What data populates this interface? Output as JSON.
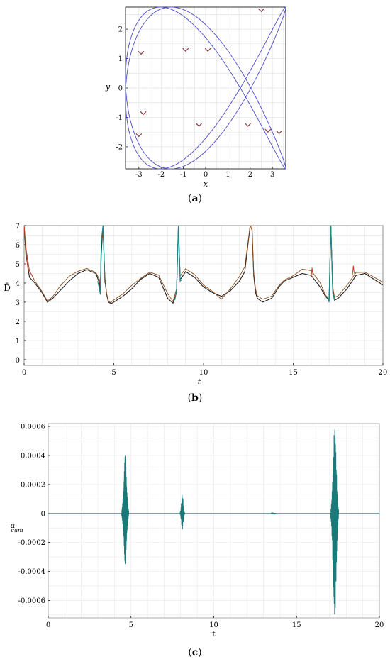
{
  "panels": [
    {
      "caption": "(a)",
      "caption_letter": "a"
    },
    {
      "caption": "(b)",
      "caption_letter": "b"
    },
    {
      "caption": "(c)",
      "caption_letter": "c"
    }
  ],
  "chart_data": [
    {
      "type": "line",
      "panel": "a",
      "xlabel": "x",
      "ylabel": "y",
      "xlim": [
        -3.6,
        3.6
      ],
      "ylim": [
        -2.75,
        2.75
      ],
      "xticks": [
        -3,
        -2,
        -1,
        0,
        1,
        2,
        3
      ],
      "yticks": [
        -2,
        -1,
        0,
        1,
        2
      ],
      "grid": true,
      "curve": {
        "kind": "parametric",
        "x_amplitude": 3.6,
        "x_frequency": 2,
        "y_amplitude": 2.75,
        "y_frequency": 3,
        "phase": 0.6,
        "color": "#4a4ac8"
      },
      "direction_arrows": [
        {
          "x": -2.9,
          "y": 1.15
        },
        {
          "x": -0.9,
          "y": 1.25
        },
        {
          "x": 0.1,
          "y": 1.25
        },
        {
          "x": 2.5,
          "y": 2.6
        },
        {
          "x": -2.8,
          "y": -0.9
        },
        {
          "x": -3.0,
          "y": -1.65
        },
        {
          "x": -0.3,
          "y": -1.3
        },
        {
          "x": 1.9,
          "y": -1.3
        },
        {
          "x": 2.8,
          "y": -1.5
        },
        {
          "x": 3.3,
          "y": -1.55
        }
      ],
      "arrow_color": "#8b3a3a"
    },
    {
      "type": "line",
      "panel": "b",
      "xlabel": "t",
      "ylabel": "D̄",
      "xlim": [
        0,
        20
      ],
      "ylim": [
        -0.3,
        7
      ],
      "xticks": [
        0,
        5,
        10,
        15,
        20
      ],
      "yticks": [
        0,
        1,
        2,
        3,
        4,
        5,
        6,
        7
      ],
      "grid": true,
      "series": [
        {
          "color": "#1f1f1f",
          "x": [
            0,
            0.1,
            0.3,
            0.6,
            1.0,
            1.3,
            1.6,
            2.0,
            2.5,
            3.0,
            3.5,
            4.0,
            4.2,
            4.25,
            4.3,
            4.4,
            4.5,
            4.6,
            4.7,
            4.8,
            4.9,
            5.5,
            6.0,
            6.5,
            7.0,
            7.5,
            8.0,
            8.3,
            8.5,
            8.6,
            8.7,
            8.8,
            9.0,
            9.5,
            10.0,
            10.5,
            11.0,
            11.5,
            12.0,
            12.3,
            12.6,
            12.7,
            12.8,
            12.9,
            13.0,
            13.3,
            13.8,
            14.2,
            14.5,
            15.0,
            15.5,
            16.0,
            16.5,
            16.8,
            17.0,
            17.1,
            17.2,
            17.3,
            17.5,
            18.0,
            18.5,
            19.0,
            19.5,
            20.0
          ],
          "y": [
            7,
            5.5,
            4.3,
            4.0,
            3.5,
            3.0,
            3.2,
            3.6,
            4.1,
            4.5,
            4.7,
            4.5,
            4.0,
            3.6,
            5.5,
            7,
            4.2,
            3.4,
            3.0,
            2.95,
            2.95,
            3.3,
            3.7,
            4.2,
            4.5,
            4.3,
            3.2,
            2.95,
            3.5,
            7,
            4.2,
            4.3,
            4.6,
            4.3,
            3.8,
            3.5,
            3.3,
            3.6,
            4.1,
            4.6,
            7,
            7,
            4.4,
            3.5,
            3.2,
            3.0,
            3.2,
            3.8,
            4.1,
            4.3,
            4.5,
            4.4,
            3.8,
            3.3,
            3.1,
            7,
            3.6,
            3.1,
            3.2,
            3.7,
            4.4,
            4.5,
            4.2,
            3.9
          ]
        },
        {
          "color": "#8b4a1a",
          "x": [
            0,
            0.1,
            0.3,
            0.6,
            1.0,
            1.3,
            1.6,
            2.0,
            2.5,
            3.0,
            3.5,
            4.0,
            4.2,
            4.25,
            4.3,
            4.4,
            4.5,
            4.6,
            4.7,
            4.8,
            4.9,
            5.5,
            6.0,
            6.5,
            7.0,
            7.5,
            8.0,
            8.3,
            8.5,
            8.6,
            8.7,
            8.8,
            9.0,
            9.5,
            10.0,
            10.5,
            11.0,
            11.5,
            12.0,
            12.3,
            12.6,
            12.7,
            12.8,
            12.9,
            13.0,
            13.3,
            13.8,
            14.2,
            14.5,
            15.0,
            15.5,
            16.0,
            16.5,
            16.8,
            17.0,
            17.1,
            17.2,
            17.3,
            17.5,
            18.0,
            18.5,
            19.0,
            19.5,
            20.0
          ],
          "y": [
            7,
            5.8,
            4.6,
            4.1,
            3.6,
            3.1,
            3.3,
            3.8,
            4.3,
            4.6,
            4.8,
            4.6,
            4.2,
            3.8,
            6.0,
            6.6,
            4.4,
            3.5,
            3.1,
            2.95,
            3.0,
            3.4,
            3.9,
            4.3,
            4.6,
            4.4,
            3.4,
            3.0,
            3.7,
            7,
            4.4,
            4.5,
            4.7,
            4.4,
            3.9,
            3.6,
            3.2,
            3.7,
            4.3,
            4.8,
            7,
            6.8,
            4.6,
            3.7,
            3.3,
            3.1,
            3.3,
            3.9,
            4.2,
            4.4,
            4.7,
            4.6,
            4.0,
            3.4,
            3.2,
            7,
            3.8,
            3.2,
            3.3,
            3.9,
            4.6,
            4.6,
            4.3,
            4.0
          ]
        },
        {
          "color": "#1a8a8a",
          "x": [
            4.1,
            4.2,
            4.25,
            4.3,
            4.4,
            4.5,
            8.4,
            8.5,
            8.6,
            8.7,
            8.8,
            16.9,
            17.0,
            17.1,
            17.2,
            17.3
          ],
          "y": [
            4.1,
            3.7,
            3.4,
            6.2,
            7,
            4.0,
            3.1,
            3.6,
            7,
            4.1,
            4.2,
            3.3,
            3.0,
            7,
            3.5,
            3.1
          ]
        },
        {
          "color": "#d04030",
          "x": [
            0,
            0.2,
            0.5,
            16.0,
            16.05,
            16.1,
            18.3,
            18.35,
            18.4
          ],
          "y": [
            7,
            4.8,
            4.3,
            4.3,
            4.8,
            4.4,
            4.4,
            4.9,
            4.5
          ]
        }
      ]
    },
    {
      "type": "line",
      "panel": "c",
      "xlabel": "t",
      "ylabel": "a",
      "ylabel_sub": "cum",
      "xlim": [
        0,
        20
      ],
      "ylim": [
        -0.00072,
        0.00062
      ],
      "xticks": [
        0,
        5,
        10,
        15,
        20
      ],
      "yticks": [
        -0.0006,
        -0.0004,
        -0.0002,
        0,
        0.0002,
        0.0004,
        0.0006
      ],
      "ytick_labels": [
        "-0.0006",
        "-0.0004",
        "-0.0002",
        "0",
        "0.0002",
        "0.0004",
        "0.0006"
      ],
      "grid": true,
      "series": [
        {
          "color": "#1a7a7a",
          "bursts": [
            {
              "center": 4.65,
              "amplitude": 0.0004,
              "neg_amplitude": -0.00035,
              "width": 0.18
            },
            {
              "center": 8.1,
              "amplitude": 0.00013,
              "neg_amplitude": -0.00011,
              "width": 0.12
            },
            {
              "center": 13.6,
              "amplitude": 4e-06,
              "neg_amplitude": -4e-06,
              "width": 0.15
            },
            {
              "center": 17.3,
              "amplitude": 0.00059,
              "neg_amplitude": -0.00071,
              "width": 0.2
            }
          ]
        }
      ]
    }
  ]
}
